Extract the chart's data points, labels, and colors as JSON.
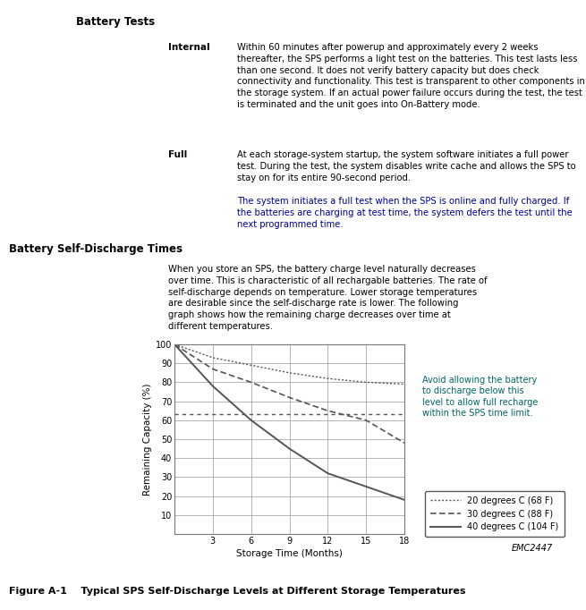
{
  "title_battery_tests": "Battery Tests",
  "title_self_discharge": "Battery Self-Discharge Times",
  "internal_label": "Internal",
  "internal_text": "Within 60 minutes after powerup and approximately every 2 weeks\nthereafter, the SPS performs a light test on the batteries. This test lasts less\nthan one second. It does not verify battery capacity but does check\nconnectivity and functionality. This test is transparent to other components in\nthe storage system. If an actual power failure occurs during the test, the test\nis terminated and the unit goes into On-Battery mode.",
  "full_label": "Full",
  "full_text1": "At each storage-system startup, the system software initiates a full power\ntest. During the test, the system disables write cache and allows the SPS to\nstay on for its entire 90-second period.",
  "full_text2": "The system initiates a full test when the SPS is online and fully charged. If\nthe batteries are charging at test time, the system defers the test until the\nnext programmed time.",
  "full_text2_color": "#000099",
  "self_discharge_text": "When you store an SPS, the battery charge level naturally decreases\nover time. This is characteristic of all rechargable batteries. The rate of\nself-discharge depends on temperature. Lower storage temperatures\nare desirable since the self-discharge rate is lower. The following\ngraph shows how the remaining charge decreases over time at\ndifferent temperatures.",
  "annotation_text": "Avoid allowing the battery\nto discharge below this\nlevel to allow full recharge\nwithin the SPS time limit.",
  "annotation_color": "#006666",
  "xlabel": "Storage Time (Months)",
  "ylabel": "Remaining Capacity (%)",
  "emc_label": "EMC2447",
  "figure_caption": "Figure A-1    Typical SPS Self-Discharge Levels at Different Storage Temperatures",
  "legend_20": "20 degrees C (68 F)",
  "legend_30": "30 degrees C (88 F)",
  "legend_40": "40 degrees C (104 F)",
  "x_20deg": [
    0,
    3,
    6,
    9,
    12,
    15,
    18
  ],
  "y_20deg": [
    100,
    93,
    89,
    85,
    82,
    80,
    79
  ],
  "x_30deg": [
    0,
    3,
    6,
    9,
    12,
    15,
    18
  ],
  "y_30deg": [
    100,
    87,
    80,
    72,
    65,
    60,
    48
  ],
  "x_40deg": [
    0,
    3,
    6,
    9,
    12,
    15,
    18
  ],
  "y_40deg": [
    100,
    78,
    60,
    45,
    32,
    25,
    18
  ],
  "hline_y": 63,
  "xlim": [
    0,
    18
  ],
  "ylim": [
    0,
    100
  ],
  "xticks": [
    0,
    3,
    6,
    9,
    12,
    15,
    18
  ],
  "yticks": [
    0,
    10,
    20,
    30,
    40,
    50,
    60,
    70,
    80,
    90,
    100
  ],
  "bg_color": "#ffffff",
  "text_color": "#000000",
  "grid_color": "#aaaaaa",
  "line_color": "#555555"
}
